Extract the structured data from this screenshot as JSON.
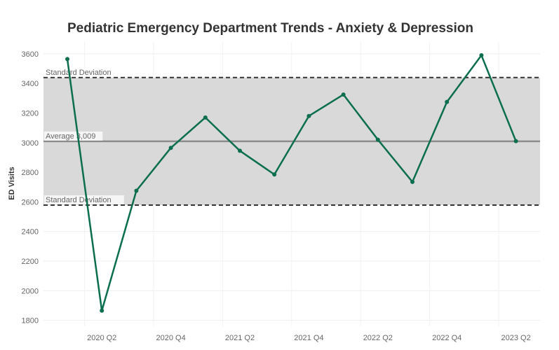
{
  "chart_data": {
    "type": "line",
    "title": "Pediatric Emergency Department Trends - Anxiety & Depression",
    "xlabel": "",
    "ylabel": "ED Visits",
    "x": [
      "2020 Q1",
      "2020 Q2",
      "2020 Q3",
      "2020 Q4",
      "2021 Q1",
      "2021 Q2",
      "2021 Q3",
      "2021 Q4",
      "2022 Q1",
      "2022 Q2",
      "2022 Q3",
      "2022 Q4",
      "2023 Q1",
      "2023 Q2"
    ],
    "x_tick_labels": [
      "2020 Q2",
      "2020 Q4",
      "2021 Q2",
      "2021 Q4",
      "2022 Q2",
      "2022 Q4",
      "2023 Q2"
    ],
    "series": [
      {
        "values": [
          3565,
          1865,
          2675,
          2965,
          3170,
          2945,
          2785,
          3180,
          3325,
          3020,
          2735,
          3275,
          3590,
          3010
        ]
      }
    ],
    "ylim": [
      1760,
      3680
    ],
    "y_ticks": [
      1800,
      2000,
      2200,
      2400,
      2600,
      2800,
      3000,
      3200,
      3400,
      3600
    ],
    "grid": true,
    "reference_lines": [
      {
        "label": "Standard Deviation",
        "value": 3440,
        "style": "dashed"
      },
      {
        "label": "Average 3,009",
        "value": 3009,
        "style": "solid"
      },
      {
        "label": "Standard Deviation",
        "value": 2578,
        "style": "dashed"
      }
    ],
    "band": {
      "from": 2578,
      "to": 3440,
      "color": "#d9d9d9"
    },
    "colors": {
      "line": "#0b6e4f",
      "reference": "#333333",
      "average": "#8c8c8c"
    }
  }
}
